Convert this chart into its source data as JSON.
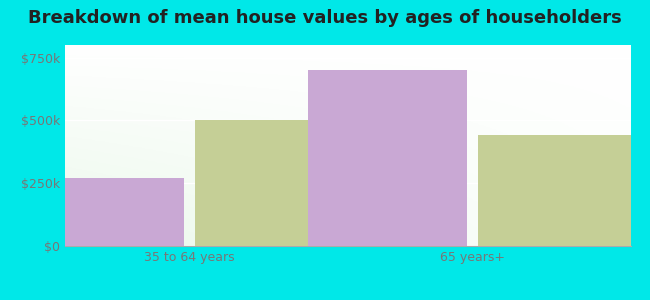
{
  "title": "Breakdown of mean house values by ages of householders",
  "categories": [
    "35 to 64 years",
    "65 years+"
  ],
  "series": {
    "Heron": [
      270000,
      700000
    ],
    "Montana": [
      500000,
      440000
    ]
  },
  "colors": {
    "Heron": "#c9a8d4",
    "Montana": "#c5cf96"
  },
  "ylim": [
    0,
    800000
  ],
  "yticks": [
    0,
    250000,
    500000,
    750000
  ],
  "ytick_labels": [
    "$0",
    "$250k",
    "$500k",
    "$750k"
  ],
  "background_outer": "#00e8e8",
  "title_fontsize": 13,
  "legend_fontsize": 10,
  "tick_fontsize": 9,
  "bar_width": 0.28
}
